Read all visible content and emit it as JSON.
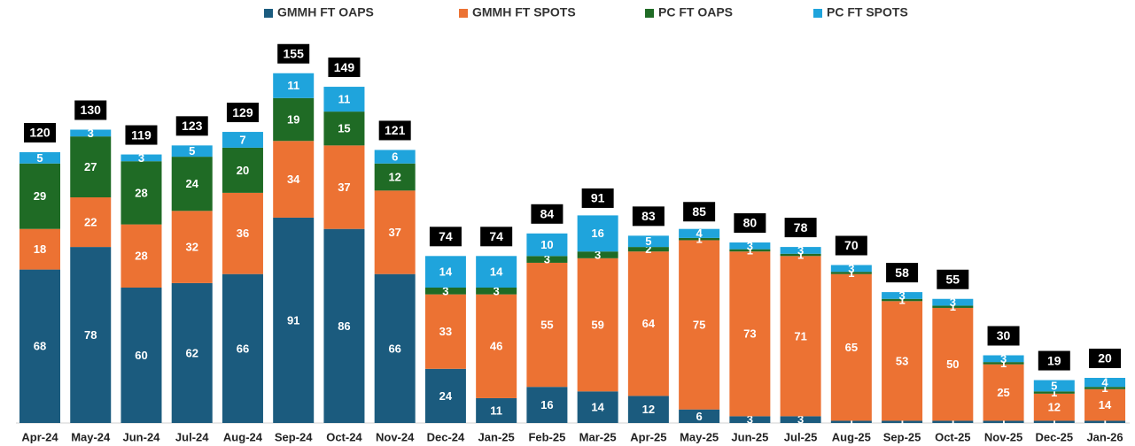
{
  "chart_data": {
    "type": "stacked-bar",
    "categories": [
      "Apr-24",
      "May-24",
      "Jun-24",
      "Jul-24",
      "Aug-24",
      "Sep-24",
      "Oct-24",
      "Nov-24",
      "Dec-24",
      "Jan-25",
      "Feb-25",
      "Mar-25",
      "Apr-25",
      "May-25",
      "Jun-25",
      "Jul-25",
      "Aug-25",
      "Sep-25",
      "Oct-25",
      "Nov-25",
      "Dec-25",
      "Jan-26"
    ],
    "series": [
      {
        "name": "GMMH FT OAPS",
        "color": "#1b5b7e",
        "values": [
          68,
          78,
          60,
          62,
          66,
          91,
          86,
          66,
          24,
          11,
          16,
          14,
          12,
          6,
          3,
          3,
          1,
          1,
          1,
          1,
          1,
          1
        ]
      },
      {
        "name": "GMMH FT SPOTS",
        "color": "#ec7233",
        "values": [
          18,
          22,
          28,
          32,
          36,
          34,
          37,
          37,
          33,
          46,
          55,
          59,
          64,
          75,
          73,
          71,
          65,
          53,
          50,
          25,
          12,
          14
        ]
      },
      {
        "name": "PC FT OAPS",
        "color": "#1f6b25",
        "values": [
          29,
          27,
          28,
          24,
          20,
          19,
          15,
          12,
          3,
          3,
          3,
          3,
          2,
          1,
          1,
          1,
          1,
          1,
          1,
          1,
          1,
          1
        ]
      },
      {
        "name": "PC FT SPOTS",
        "color": "#1fa4dc",
        "values": [
          5,
          3,
          3,
          5,
          7,
          11,
          11,
          6,
          14,
          14,
          10,
          16,
          5,
          4,
          3,
          3,
          3,
          3,
          3,
          3,
          5,
          4
        ]
      }
    ],
    "totals": [
      120,
      130,
      119,
      123,
      129,
      155,
      149,
      121,
      74,
      74,
      84,
      91,
      83,
      85,
      80,
      78,
      70,
      58,
      55,
      30,
      19,
      20
    ],
    "ylim": [
      0,
      160
    ]
  }
}
